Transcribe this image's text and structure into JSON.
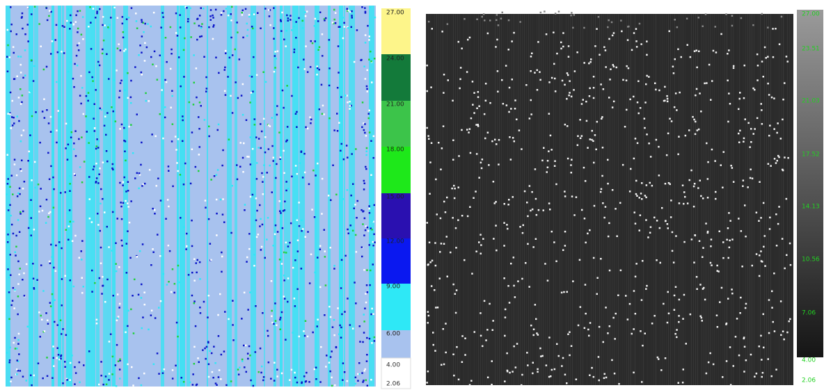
{
  "left_panel": {
    "colorbar": {
      "labels": [
        "27.00",
        "24.00",
        "21.00",
        "18.00",
        "15.00",
        "12.00",
        "9.00",
        "6.00",
        "4.00",
        "2.06"
      ]
    }
  },
  "right_panel": {
    "colorbar": {
      "labels": [
        "27.00",
        "23.51",
        "21.03",
        "17.52",
        "14.13",
        "10.56",
        "7.06",
        "4.00",
        "2.06"
      ]
    }
  }
}
